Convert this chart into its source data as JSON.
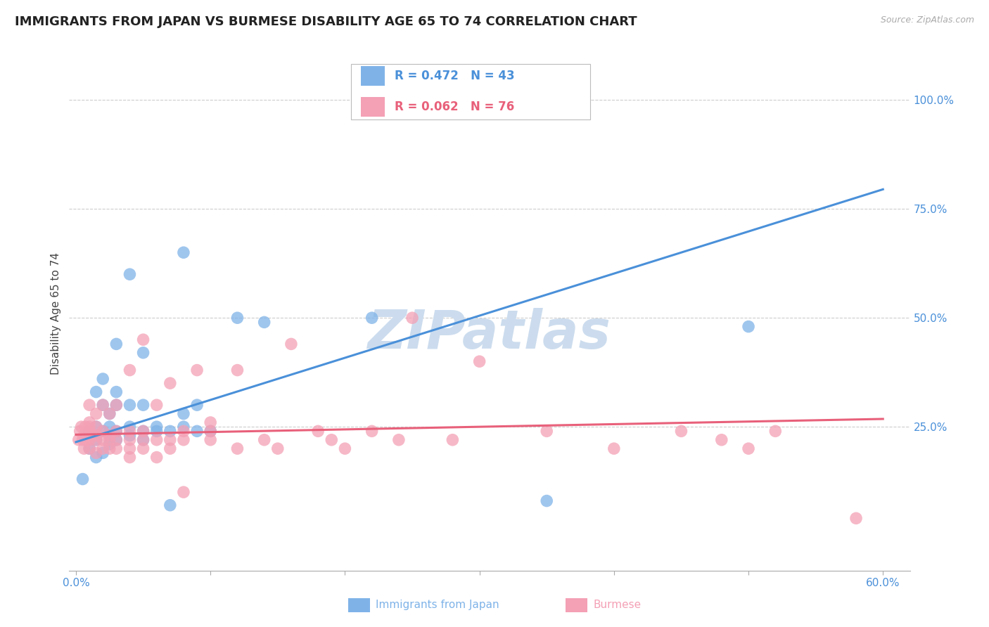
{
  "title": "IMMIGRANTS FROM JAPAN VS BURMESE DISABILITY AGE 65 TO 74 CORRELATION CHART",
  "source": "Source: ZipAtlas.com",
  "ylabel_label": "Disability Age 65 to 74",
  "xlim": [
    -0.005,
    0.62
  ],
  "ylim": [
    -0.08,
    1.1
  ],
  "x_ticks": [
    0.0,
    0.1,
    0.2,
    0.3,
    0.4,
    0.5,
    0.6
  ],
  "x_tick_labels": [
    "0.0%",
    "",
    "",
    "",
    "",
    "",
    "60.0%"
  ],
  "y_tick_labels": [
    "100.0%",
    "75.0%",
    "50.0%",
    "25.0%"
  ],
  "y_tick_positions": [
    1.0,
    0.75,
    0.5,
    0.25
  ],
  "color_japan": "#7fb3e8",
  "color_burmese": "#f4a0b5",
  "line_color_japan": "#4a90d9",
  "line_color_burmese": "#e8607a",
  "legend_r_japan": "R = 0.472",
  "legend_n_japan": "N = 43",
  "legend_r_burmese": "R = 0.062",
  "legend_n_burmese": "N = 76",
  "legend_label_japan": "Immigrants from Japan",
  "legend_label_burmese": "Burmese",
  "watermark": "ZIPatlas",
  "japan_x": [
    0.005,
    0.01,
    0.01,
    0.015,
    0.015,
    0.015,
    0.015,
    0.02,
    0.02,
    0.02,
    0.02,
    0.025,
    0.025,
    0.025,
    0.025,
    0.03,
    0.03,
    0.03,
    0.03,
    0.03,
    0.04,
    0.04,
    0.04,
    0.04,
    0.05,
    0.05,
    0.05,
    0.05,
    0.06,
    0.06,
    0.07,
    0.07,
    0.08,
    0.08,
    0.08,
    0.09,
    0.09,
    0.1,
    0.12,
    0.14,
    0.22,
    0.35,
    0.5
  ],
  "japan_y": [
    0.13,
    0.2,
    0.24,
    0.18,
    0.22,
    0.25,
    0.33,
    0.19,
    0.24,
    0.3,
    0.36,
    0.21,
    0.23,
    0.25,
    0.28,
    0.22,
    0.24,
    0.3,
    0.33,
    0.44,
    0.23,
    0.25,
    0.3,
    0.6,
    0.22,
    0.24,
    0.3,
    0.42,
    0.24,
    0.25,
    0.07,
    0.24,
    0.25,
    0.28,
    0.65,
    0.24,
    0.3,
    0.24,
    0.5,
    0.49,
    0.5,
    0.08,
    0.48
  ],
  "burmese_x": [
    0.002,
    0.003,
    0.004,
    0.005,
    0.006,
    0.006,
    0.007,
    0.007,
    0.008,
    0.008,
    0.01,
    0.01,
    0.01,
    0.01,
    0.01,
    0.01,
    0.01,
    0.015,
    0.015,
    0.015,
    0.015,
    0.015,
    0.02,
    0.02,
    0.02,
    0.02,
    0.025,
    0.025,
    0.025,
    0.025,
    0.03,
    0.03,
    0.03,
    0.03,
    0.04,
    0.04,
    0.04,
    0.04,
    0.04,
    0.05,
    0.05,
    0.05,
    0.05,
    0.06,
    0.06,
    0.06,
    0.07,
    0.07,
    0.07,
    0.08,
    0.08,
    0.08,
    0.09,
    0.1,
    0.1,
    0.1,
    0.12,
    0.12,
    0.14,
    0.15,
    0.16,
    0.18,
    0.19,
    0.2,
    0.22,
    0.24,
    0.25,
    0.28,
    0.3,
    0.35,
    0.4,
    0.45,
    0.48,
    0.5,
    0.52,
    0.58
  ],
  "burmese_y": [
    0.22,
    0.24,
    0.25,
    0.22,
    0.2,
    0.23,
    0.22,
    0.25,
    0.22,
    0.24,
    0.2,
    0.22,
    0.23,
    0.24,
    0.25,
    0.26,
    0.3,
    0.19,
    0.22,
    0.23,
    0.25,
    0.28,
    0.2,
    0.22,
    0.24,
    0.3,
    0.2,
    0.22,
    0.23,
    0.28,
    0.2,
    0.22,
    0.24,
    0.3,
    0.18,
    0.2,
    0.22,
    0.24,
    0.38,
    0.2,
    0.22,
    0.24,
    0.45,
    0.18,
    0.22,
    0.3,
    0.2,
    0.22,
    0.35,
    0.22,
    0.24,
    0.1,
    0.38,
    0.22,
    0.24,
    0.26,
    0.2,
    0.38,
    0.22,
    0.2,
    0.44,
    0.24,
    0.22,
    0.2,
    0.24,
    0.22,
    0.5,
    0.22,
    0.4,
    0.24,
    0.2,
    0.24,
    0.22,
    0.2,
    0.24,
    0.04
  ],
  "japan_line_x": [
    0.0,
    0.6
  ],
  "japan_line_y": [
    0.215,
    0.795
  ],
  "burmese_line_x": [
    0.0,
    0.6
  ],
  "burmese_line_y": [
    0.232,
    0.268
  ],
  "grid_color": "#cccccc",
  "bg_color": "#ffffff",
  "title_fontsize": 13,
  "axis_label_fontsize": 11,
  "tick_fontsize": 11,
  "watermark_color": "#ccdcee",
  "watermark_fontsize": 55
}
